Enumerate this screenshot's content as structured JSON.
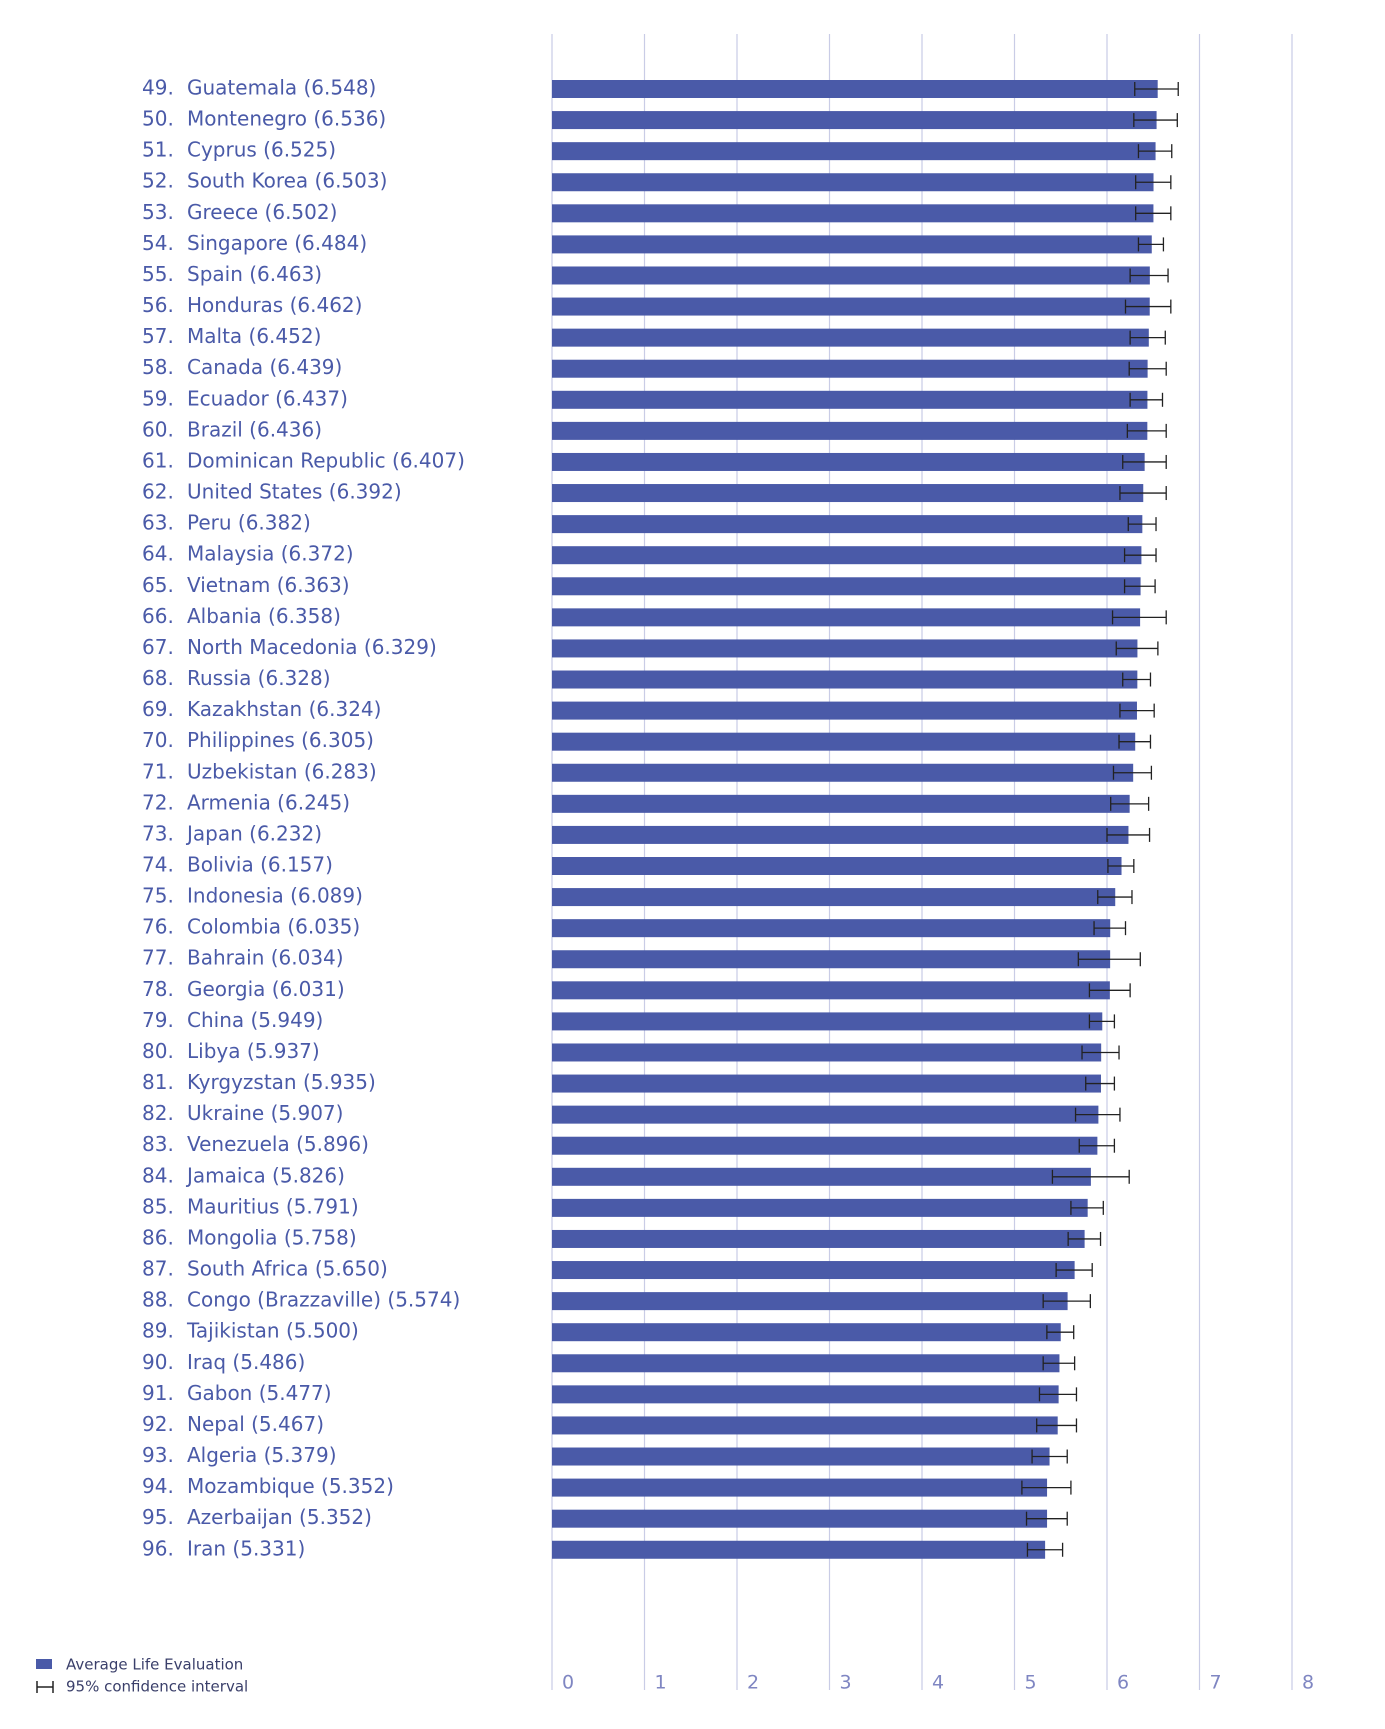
{
  "chart_data": {
    "type": "bar",
    "orientation": "horizontal",
    "ranks": [
      "49.",
      "50.",
      "51.",
      "52.",
      "53.",
      "54.",
      "55.",
      "56.",
      "57.",
      "58.",
      "59.",
      "60.",
      "61.",
      "62.",
      "63.",
      "64.",
      "65.",
      "66.",
      "67.",
      "68.",
      "69.",
      "70.",
      "71.",
      "72.",
      "73.",
      "74.",
      "75.",
      "76.",
      "77.",
      "78.",
      "79.",
      "80.",
      "81.",
      "82.",
      "83.",
      "84.",
      "85.",
      "86.",
      "87.",
      "88.",
      "89.",
      "90.",
      "91.",
      "92.",
      "93.",
      "94.",
      "95.",
      "96."
    ],
    "categories": [
      "Guatemala (6.548)",
      "Montenegro (6.536)",
      "Cyprus (6.525)",
      "South Korea (6.503)",
      "Greece (6.502)",
      "Singapore (6.484)",
      "Spain (6.463)",
      "Honduras (6.462)",
      "Malta (6.452)",
      "Canada (6.439)",
      "Ecuador (6.437)",
      "Brazil (6.436)",
      "Dominican Republic (6.407)",
      "United States (6.392)",
      "Peru (6.382)",
      "Malaysia (6.372)",
      "Vietnam (6.363)",
      "Albania (6.358)",
      "North Macedonia (6.329)",
      "Russia (6.328)",
      "Kazakhstan (6.324)",
      "Philippines (6.305)",
      "Uzbekistan (6.283)",
      "Armenia (6.245)",
      "Japan (6.232)",
      "Bolivia (6.157)",
      "Indonesia (6.089)",
      "Colombia (6.035)",
      "Bahrain (6.034)",
      "Georgia (6.031)",
      "China (5.949)",
      "Libya (5.937)",
      "Kyrgyzstan (5.935)",
      "Ukraine (5.907)",
      "Venezuela (5.896)",
      "Jamaica (5.826)",
      "Mauritius (5.791)",
      "Mongolia (5.758)",
      "South Africa (5.650)",
      "Congo  (Brazzaville) (5.574)",
      "Tajikistan (5.500)",
      "Iraq (5.486)",
      "Gabon (5.477)",
      "Nepal (5.467)",
      "Algeria (5.379)",
      "Mozambique (5.352)",
      "Azerbaijan (5.352)",
      "Iran (5.331)"
    ],
    "series": [
      {
        "name": "Average Life Evaluation",
        "color": "#4a5aa8",
        "values": [
          6.548,
          6.536,
          6.525,
          6.503,
          6.502,
          6.484,
          6.463,
          6.462,
          6.452,
          6.439,
          6.437,
          6.436,
          6.407,
          6.392,
          6.382,
          6.372,
          6.363,
          6.358,
          6.329,
          6.328,
          6.324,
          6.305,
          6.283,
          6.245,
          6.232,
          6.157,
          6.089,
          6.035,
          6.034,
          6.031,
          5.949,
          5.937,
          5.935,
          5.907,
          5.896,
          5.826,
          5.791,
          5.758,
          5.65,
          5.574,
          5.5,
          5.486,
          5.477,
          5.467,
          5.379,
          5.352,
          5.352,
          5.331
        ]
      }
    ],
    "ci_name": "95% confidence interval",
    "ci_low": [
      6.3,
      6.29,
      6.34,
      6.31,
      6.31,
      6.34,
      6.25,
      6.2,
      6.25,
      6.24,
      6.25,
      6.22,
      6.17,
      6.14,
      6.23,
      6.19,
      6.19,
      6.06,
      6.1,
      6.17,
      6.14,
      6.13,
      6.07,
      6.04,
      6.0,
      6.01,
      5.9,
      5.86,
      5.69,
      5.81,
      5.81,
      5.73,
      5.77,
      5.66,
      5.7,
      5.41,
      5.61,
      5.58,
      5.45,
      5.31,
      5.35,
      5.31,
      5.27,
      5.24,
      5.19,
      5.08,
      5.13,
      5.14
    ],
    "ci_high": [
      6.77,
      6.76,
      6.7,
      6.69,
      6.69,
      6.61,
      6.66,
      6.69,
      6.63,
      6.64,
      6.6,
      6.64,
      6.64,
      6.64,
      6.53,
      6.53,
      6.52,
      6.64,
      6.55,
      6.47,
      6.51,
      6.47,
      6.48,
      6.45,
      6.46,
      6.29,
      6.27,
      6.2,
      6.36,
      6.25,
      6.08,
      6.13,
      6.08,
      6.14,
      6.08,
      6.24,
      5.96,
      5.93,
      5.84,
      5.82,
      5.64,
      5.65,
      5.67,
      5.67,
      5.57,
      5.61,
      5.57,
      5.52
    ],
    "xlim": [
      0,
      8
    ],
    "xticks": [
      0,
      1,
      2,
      3,
      4,
      5,
      6,
      7,
      8
    ],
    "grid": true,
    "legend": "bottom-left"
  }
}
